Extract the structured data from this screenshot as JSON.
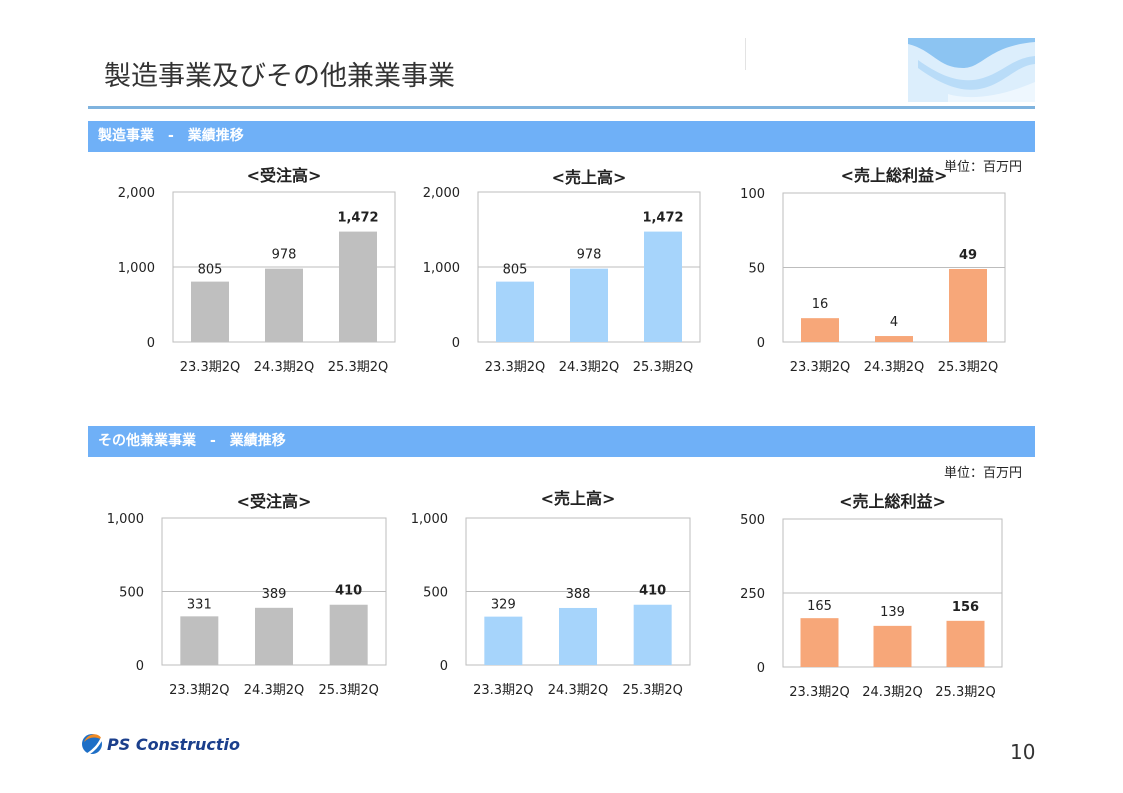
{
  "page": {
    "title": "製造事業及びその他兼業事業",
    "page_number": "10",
    "logo_text": "PS Construction"
  },
  "sections": [
    {
      "label": "製造事業　-　業績推移",
      "unit": "単位：百万円"
    },
    {
      "label": "その他兼業事業　-　業績推移",
      "unit": "単位：百万円"
    }
  ],
  "colors": {
    "gray": "#bfbfbf",
    "blue": "#a6d4fb",
    "orange": "#f7a779",
    "section_bar": "#6fb0f7"
  },
  "chart_data": [
    {
      "type": "bar",
      "title": "<受注高>",
      "categories": [
        "23.3期2Q",
        "24.3期2Q",
        "25.3期2Q"
      ],
      "values": [
        805,
        978,
        1472
      ],
      "ylim": [
        0,
        2000
      ],
      "yticks": [
        "0",
        "1,000",
        "2,000"
      ],
      "data_labels": [
        "805",
        "978",
        "1,472"
      ],
      "bold_last": true,
      "color": "gray",
      "grid": true
    },
    {
      "type": "bar",
      "title": "<売上高>",
      "categories": [
        "23.3期2Q",
        "24.3期2Q",
        "25.3期2Q"
      ],
      "values": [
        805,
        978,
        1472
      ],
      "ylim": [
        0,
        2000
      ],
      "yticks": [
        "0",
        "1,000",
        "2,000"
      ],
      "data_labels": [
        "805",
        "978",
        "1,472"
      ],
      "bold_last": true,
      "color": "blue",
      "grid": true
    },
    {
      "type": "bar",
      "title": "<売上総利益>",
      "categories": [
        "23.3期2Q",
        "24.3期2Q",
        "25.3期2Q"
      ],
      "values": [
        16,
        4,
        49
      ],
      "ylim": [
        0,
        100
      ],
      "yticks": [
        "0",
        "50",
        "100"
      ],
      "data_labels": [
        "16",
        "4",
        "49"
      ],
      "bold_last": true,
      "color": "orange",
      "grid": true
    },
    {
      "type": "bar",
      "title": "<受注高>",
      "categories": [
        "23.3期2Q",
        "24.3期2Q",
        "25.3期2Q"
      ],
      "values": [
        331,
        389,
        410
      ],
      "ylim": [
        0,
        1000
      ],
      "yticks": [
        "0",
        "500",
        "1,000"
      ],
      "data_labels": [
        "331",
        "389",
        "410"
      ],
      "bold_last": true,
      "color": "gray",
      "grid": true
    },
    {
      "type": "bar",
      "title": "<売上高>",
      "categories": [
        "23.3期2Q",
        "24.3期2Q",
        "25.3期2Q"
      ],
      "values": [
        329,
        388,
        410
      ],
      "ylim": [
        0,
        1000
      ],
      "yticks": [
        "0",
        "500",
        "1,000"
      ],
      "data_labels": [
        "329",
        "388",
        "410"
      ],
      "bold_last": true,
      "color": "blue",
      "grid": true
    },
    {
      "type": "bar",
      "title": "<売上総利益>",
      "categories": [
        "23.3期2Q",
        "24.3期2Q",
        "25.3期2Q"
      ],
      "values": [
        165,
        139,
        156
      ],
      "ylim": [
        0,
        500
      ],
      "yticks": [
        "0",
        "250",
        "500"
      ],
      "data_labels": [
        "165",
        "139",
        "156"
      ],
      "bold_last": true,
      "color": "orange",
      "grid": true
    }
  ]
}
